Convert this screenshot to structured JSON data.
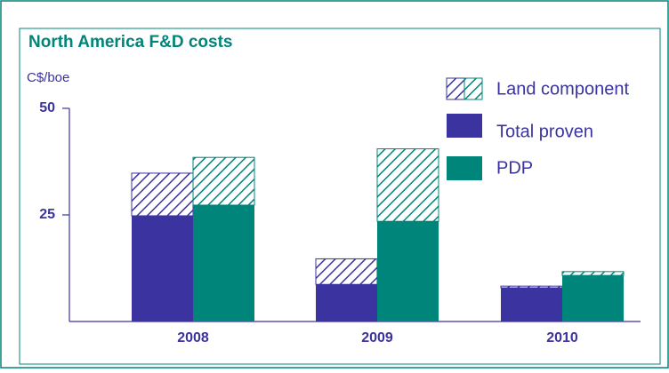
{
  "chart_data": {
    "type": "stacked-bar",
    "title": "North America F&D costs",
    "y_label": "C$/boe",
    "categories": [
      "2008",
      "2009",
      "2010"
    ],
    "land_label": "Land component",
    "series": [
      {
        "name": "Total proven",
        "color": "#3a33a0",
        "values": [
          24.8,
          8.7,
          7.9
        ],
        "land": [
          10,
          6,
          0.4
        ]
      },
      {
        "name": "PDP",
        "color": "#00857a",
        "values": [
          27.3,
          23.5,
          10.8
        ],
        "land": [
          11.2,
          17,
          0.9
        ]
      }
    ],
    "ylim": [
      0,
      50
    ],
    "yticks": [
      25,
      50
    ]
  }
}
